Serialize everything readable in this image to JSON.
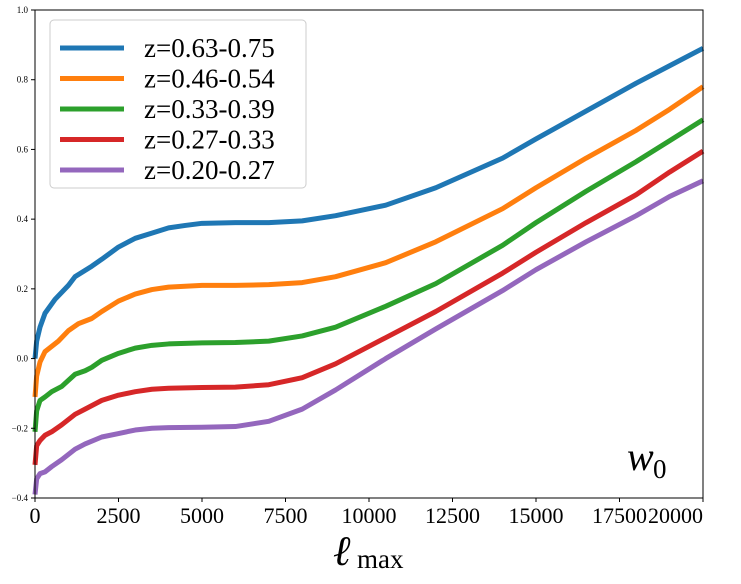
{
  "chart_data": {
    "type": "line",
    "title": "",
    "xlabel": "ℓ",
    "xlabel_subscript": "max",
    "ylabel": "",
    "xlim": [
      0,
      20000
    ],
    "ylim": [
      -0.4,
      1.0
    ],
    "grid": false,
    "legend_position": "top-left",
    "x_ticks": [
      0,
      2500,
      5000,
      7500,
      10000,
      12500,
      15000,
      17500,
      20000
    ],
    "x_tick_labels": [
      "0",
      "2500",
      "5000",
      "7500",
      "10000",
      "12500",
      "15000",
      "17500",
      "20000"
    ],
    "y_ticks": [
      -0.4,
      -0.2,
      0.0,
      0.2,
      0.4,
      0.6,
      0.8,
      1.0
    ],
    "y_tick_labels": [
      "−0.4",
      "−0.2",
      "0.0",
      "0.2",
      "0.4",
      "0.6",
      "0.8",
      "1.0"
    ],
    "annotation": {
      "text": "w",
      "subscript": "0",
      "position": "bottom-right"
    },
    "series": [
      {
        "name": "z=0.63-0.75",
        "color": "#1f77b4",
        "points": [
          [
            0,
            0.0
          ],
          [
            50,
            0.05
          ],
          [
            150,
            0.09
          ],
          [
            300,
            0.13
          ],
          [
            600,
            0.17
          ],
          [
            1000,
            0.21
          ],
          [
            1200,
            0.235
          ],
          [
            1700,
            0.265
          ],
          [
            2000,
            0.285
          ],
          [
            2500,
            0.32
          ],
          [
            3000,
            0.345
          ],
          [
            3500,
            0.36
          ],
          [
            4000,
            0.375
          ],
          [
            4500,
            0.382
          ],
          [
            5000,
            0.388
          ],
          [
            6000,
            0.39
          ],
          [
            7000,
            0.39
          ],
          [
            8000,
            0.395
          ],
          [
            9000,
            0.41
          ],
          [
            10500,
            0.44
          ],
          [
            12000,
            0.49
          ],
          [
            14000,
            0.575
          ],
          [
            15000,
            0.63
          ],
          [
            16500,
            0.71
          ],
          [
            18000,
            0.79
          ],
          [
            19000,
            0.84
          ],
          [
            20000,
            0.89
          ]
        ]
      },
      {
        "name": "z=0.46-0.54",
        "color": "#ff7f0e",
        "points": [
          [
            0,
            -0.11
          ],
          [
            50,
            -0.05
          ],
          [
            150,
            -0.01
          ],
          [
            300,
            0.02
          ],
          [
            700,
            0.05
          ],
          [
            1000,
            0.08
          ],
          [
            1300,
            0.1
          ],
          [
            1700,
            0.115
          ],
          [
            2000,
            0.135
          ],
          [
            2500,
            0.165
          ],
          [
            3000,
            0.185
          ],
          [
            3500,
            0.198
          ],
          [
            4000,
            0.205
          ],
          [
            5000,
            0.21
          ],
          [
            6000,
            0.21
          ],
          [
            7000,
            0.212
          ],
          [
            8000,
            0.218
          ],
          [
            9000,
            0.235
          ],
          [
            10500,
            0.275
          ],
          [
            12000,
            0.335
          ],
          [
            14000,
            0.43
          ],
          [
            15000,
            0.49
          ],
          [
            16500,
            0.575
          ],
          [
            18000,
            0.655
          ],
          [
            19000,
            0.715
          ],
          [
            20000,
            0.78
          ]
        ]
      },
      {
        "name": "z=0.33-0.39",
        "color": "#2ca02c",
        "points": [
          [
            0,
            -0.21
          ],
          [
            50,
            -0.15
          ],
          [
            150,
            -0.12
          ],
          [
            300,
            -0.11
          ],
          [
            500,
            -0.095
          ],
          [
            800,
            -0.08
          ],
          [
            1200,
            -0.045
          ],
          [
            1500,
            -0.035
          ],
          [
            1700,
            -0.025
          ],
          [
            2000,
            -0.005
          ],
          [
            2500,
            0.015
          ],
          [
            3000,
            0.03
          ],
          [
            3500,
            0.038
          ],
          [
            4000,
            0.042
          ],
          [
            5000,
            0.045
          ],
          [
            6000,
            0.046
          ],
          [
            7000,
            0.05
          ],
          [
            8000,
            0.065
          ],
          [
            9000,
            0.09
          ],
          [
            10500,
            0.15
          ],
          [
            12000,
            0.215
          ],
          [
            14000,
            0.325
          ],
          [
            15000,
            0.39
          ],
          [
            16500,
            0.48
          ],
          [
            18000,
            0.565
          ],
          [
            19000,
            0.625
          ],
          [
            20000,
            0.685
          ]
        ]
      },
      {
        "name": "z=0.27-0.33",
        "color": "#d62728",
        "points": [
          [
            0,
            -0.305
          ],
          [
            50,
            -0.25
          ],
          [
            150,
            -0.235
          ],
          [
            300,
            -0.22
          ],
          [
            500,
            -0.21
          ],
          [
            800,
            -0.19
          ],
          [
            1200,
            -0.16
          ],
          [
            1500,
            -0.145
          ],
          [
            2000,
            -0.12
          ],
          [
            2500,
            -0.105
          ],
          [
            3000,
            -0.095
          ],
          [
            3500,
            -0.088
          ],
          [
            4000,
            -0.085
          ],
          [
            5000,
            -0.083
          ],
          [
            6000,
            -0.082
          ],
          [
            7000,
            -0.075
          ],
          [
            8000,
            -0.055
          ],
          [
            9000,
            -0.015
          ],
          [
            10500,
            0.06
          ],
          [
            12000,
            0.135
          ],
          [
            14000,
            0.245
          ],
          [
            15000,
            0.305
          ],
          [
            16500,
            0.39
          ],
          [
            18000,
            0.47
          ],
          [
            19000,
            0.535
          ],
          [
            20000,
            0.595
          ]
        ]
      },
      {
        "name": "z=0.20-0.27",
        "color": "#9467bd",
        "points": [
          [
            0,
            -0.39
          ],
          [
            50,
            -0.345
          ],
          [
            150,
            -0.33
          ],
          [
            300,
            -0.325
          ],
          [
            500,
            -0.31
          ],
          [
            800,
            -0.29
          ],
          [
            1200,
            -0.26
          ],
          [
            1500,
            -0.245
          ],
          [
            2000,
            -0.225
          ],
          [
            2500,
            -0.215
          ],
          [
            3000,
            -0.205
          ],
          [
            3500,
            -0.2
          ],
          [
            4000,
            -0.198
          ],
          [
            5000,
            -0.197
          ],
          [
            6000,
            -0.195
          ],
          [
            7000,
            -0.18
          ],
          [
            8000,
            -0.145
          ],
          [
            9000,
            -0.09
          ],
          [
            10500,
            0.0
          ],
          [
            12000,
            0.085
          ],
          [
            14000,
            0.195
          ],
          [
            15000,
            0.255
          ],
          [
            16500,
            0.335
          ],
          [
            18000,
            0.41
          ],
          [
            19000,
            0.465
          ],
          [
            20000,
            0.51
          ]
        ]
      }
    ]
  }
}
